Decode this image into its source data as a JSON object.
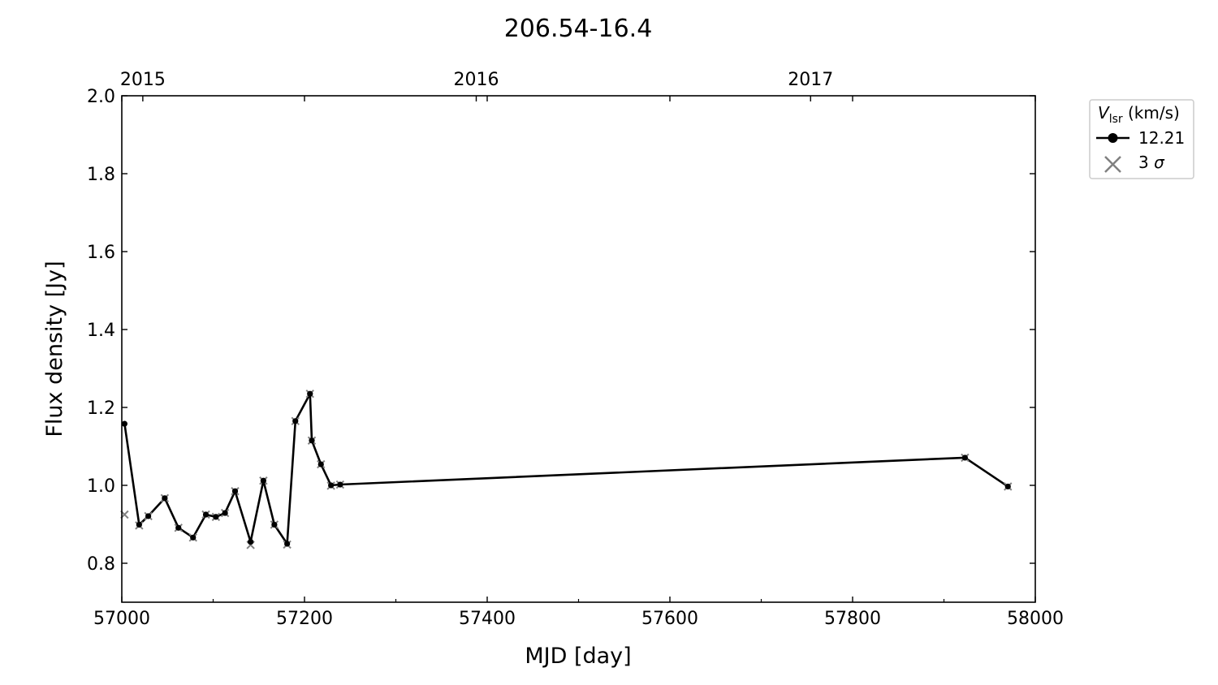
{
  "chart_data": {
    "type": "line",
    "title": "206.54-16.4",
    "xlabel": "MJD [day]",
    "ylabel": "Flux density [Jy]",
    "xlim": [
      57000,
      58000
    ],
    "ylim": [
      0.7,
      2.0
    ],
    "xticks": [
      57000,
      57200,
      57400,
      57600,
      57800,
      58000
    ],
    "yticks": [
      0.8,
      1.0,
      1.2,
      1.4,
      1.6,
      1.8,
      2.0
    ],
    "top_axis": {
      "ticks": [
        {
          "label": "2015",
          "mjd": 57023
        },
        {
          "label": "2016",
          "mjd": 57388
        },
        {
          "label": "2017",
          "mjd": 57754
        }
      ]
    },
    "legend": {
      "title": "V",
      "title_subscript": "lsr",
      "title_suffix": " (km/s)",
      "placement": "outside-top-right",
      "entries": [
        {
          "label": "12.21",
          "marker": "circle-line",
          "color": "#000000"
        },
        {
          "label": "3 ",
          "label_italic": "σ",
          "marker": "x",
          "color": "#808080"
        }
      ]
    },
    "series": [
      {
        "name": "12.21",
        "color": "#000000",
        "x": [
          57003,
          57019,
          57029,
          57047,
          57062,
          57078,
          57092,
          57103,
          57113,
          57124,
          57141,
          57155,
          57167,
          57181,
          57190,
          57206,
          57208,
          57218,
          57229,
          57239,
          57923,
          57970
        ],
        "y": [
          1.158,
          0.899,
          0.921,
          0.967,
          0.891,
          0.866,
          0.925,
          0.919,
          0.929,
          0.985,
          0.855,
          1.012,
          0.899,
          0.85,
          1.165,
          1.235,
          1.115,
          1.054,
          1.0,
          1.002,
          1.071,
          0.997
        ]
      }
    ],
    "sigma3": {
      "name": "3 σ",
      "color": "#808080",
      "x": [
        57003,
        57019,
        57029,
        57047,
        57062,
        57078,
        57092,
        57103,
        57113,
        57124,
        57141,
        57155,
        57167,
        57181,
        57190,
        57206,
        57208,
        57218,
        57229,
        57239,
        57923,
        57970
      ],
      "y": [
        0.925,
        0.897,
        0.921,
        0.967,
        0.891,
        0.866,
        0.925,
        0.919,
        0.929,
        0.985,
        0.847,
        1.012,
        0.899,
        0.848,
        1.165,
        1.235,
        1.115,
        1.054,
        0.999,
        1.002,
        1.071,
        0.997
      ]
    }
  }
}
